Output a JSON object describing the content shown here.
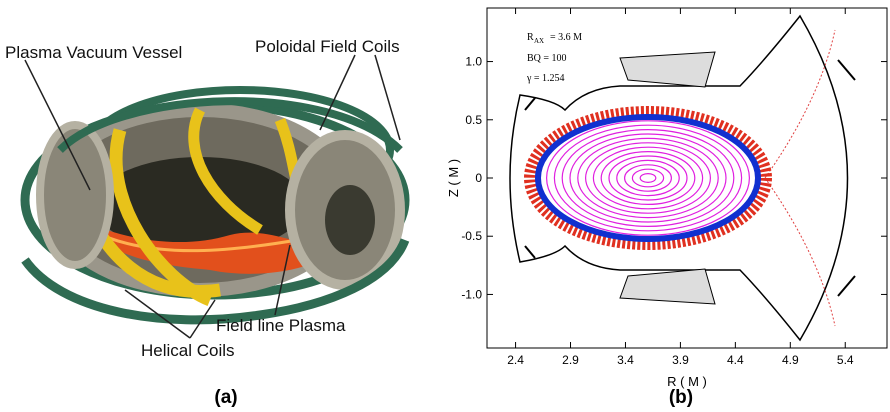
{
  "panel_a": {
    "labels": [
      "Plasma Vacuum Vessel",
      "Poloidal Field Coils",
      "Field line Plasma",
      "Helical Coils"
    ],
    "caption": "(a)"
  },
  "panel_b": {
    "caption": "(b)",
    "x_label": "R ( M )",
    "y_label": "Z ( M )",
    "annotations": [
      "R",
      "AX",
      "= 3.6  M",
      "BQ = 100",
      "γ = 1.254"
    ],
    "xlim": [
      2.14,
      5.78
    ],
    "ylim": [
      -1.46,
      1.46
    ],
    "xticks": [
      2.4,
      2.9,
      3.4,
      3.9,
      4.4,
      4.9,
      5.4
    ],
    "yticks": [
      {
        "value": 1,
        "label": "1.0"
      },
      0.5,
      0,
      -0.5,
      {
        "value": -1,
        "label": "-1.0"
      }
    ]
  }
}
